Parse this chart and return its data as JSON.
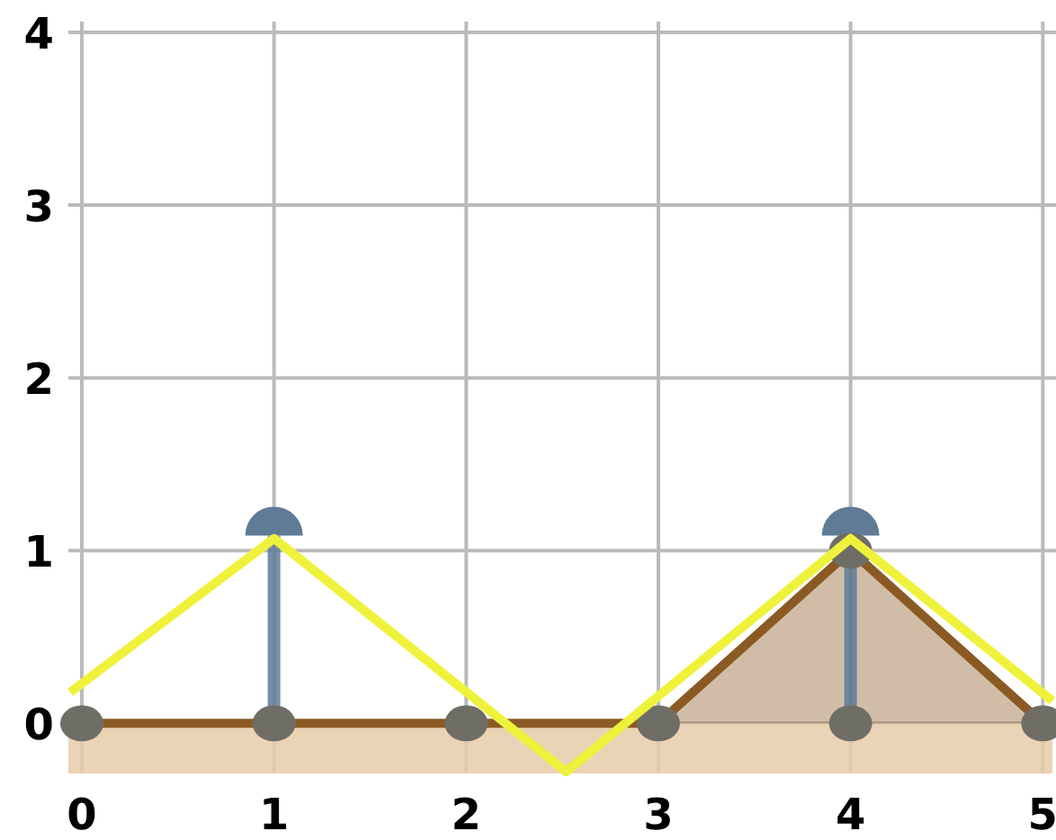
{
  "chart_data": {
    "type": "area",
    "xlim": [
      -0.07,
      5.05
    ],
    "ylim": [
      -0.29,
      4
    ],
    "xticks": [
      0,
      1,
      2,
      3,
      4,
      5
    ],
    "yticks": [
      0,
      1,
      2,
      3,
      4
    ],
    "grid": true,
    "legend": false,
    "bands": [
      {
        "axis": "y",
        "from": -0.29,
        "to": 0,
        "color": "#e8cba8"
      }
    ],
    "series": [
      {
        "color": "#8b5a24",
        "x": [
          0,
          1,
          2,
          3,
          4,
          5
        ],
        "values": [
          0,
          0,
          0,
          0,
          1,
          0
        ]
      },
      {
        "type": "lollipop",
        "color": "#5f7b96",
        "x": [
          1,
          4
        ],
        "values": [
          1.15,
          1.15
        ]
      },
      {
        "type": "scatter",
        "color": "#6e6e66",
        "x": [
          0,
          1,
          2,
          3,
          4,
          4,
          5
        ],
        "values": [
          0,
          0,
          0,
          0,
          1,
          0,
          0
        ],
        "marker": "circle"
      },
      {
        "type": "line",
        "color": "#eef23a",
        "x": [
          -0.06,
          1,
          2.52,
          4,
          5.05
        ],
        "values": [
          0.18,
          1.07,
          -0.28,
          1.07,
          0.13
        ]
      }
    ]
  }
}
